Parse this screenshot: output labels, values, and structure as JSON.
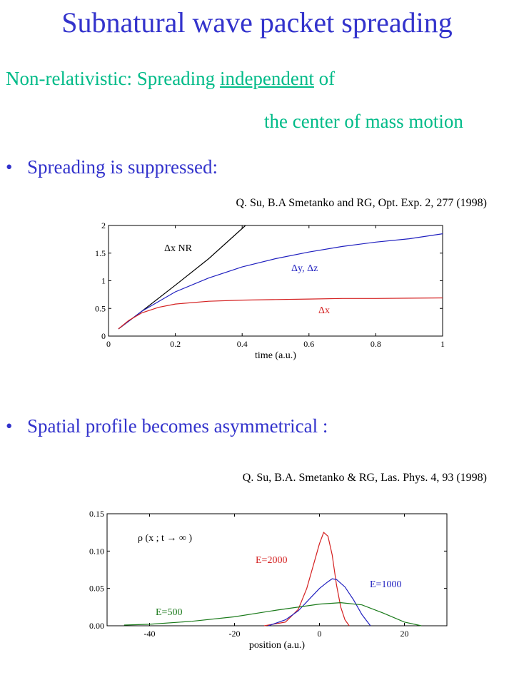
{
  "slide": {
    "title": "Subnatural wave packet spreading",
    "nr_line1_prefix": "Non-relativistic: Spreading ",
    "nr_line1_underlined": "independent",
    "nr_line1_suffix": " of",
    "nr_line2": "the center of mass motion",
    "bullet1": "Spreading is suppressed:",
    "ref1": "Q. Su, B.A Smetanko and RG, Opt. Exp. 2, 277 (1998)",
    "bullet2": "Spatial profile becomes asymmetrical :",
    "ref2": "Q. Su,  B.A. Smetanko & RG, Las. Phys. 4, 93 (1998)",
    "bullet_glyph": "•"
  },
  "chart_data": [
    {
      "type": "line",
      "xlabel": "time (a.u.)",
      "ylabel": "",
      "xlim": [
        0,
        1
      ],
      "ylim": [
        0,
        2
      ],
      "xticks": [
        "0",
        "0.2",
        "0.4",
        "0.6",
        "0.8",
        "1"
      ],
      "yticks": [
        "0",
        "0.5",
        "1",
        "1.5",
        "2"
      ],
      "series": [
        {
          "name": "Δx NR",
          "color": "#000000",
          "x": [
            0.03,
            0.1,
            0.2,
            0.3,
            0.41
          ],
          "y": [
            0.13,
            0.45,
            0.92,
            1.4,
            2.0
          ]
        },
        {
          "name": "Δy,  Δz",
          "color": "#1f1fbf",
          "x": [
            0.03,
            0.1,
            0.2,
            0.3,
            0.4,
            0.5,
            0.6,
            0.7,
            0.8,
            0.9,
            1.0
          ],
          "y": [
            0.13,
            0.45,
            0.8,
            1.05,
            1.25,
            1.4,
            1.52,
            1.62,
            1.7,
            1.76,
            1.85
          ]
        },
        {
          "name": "Δx",
          "color": "#d42020",
          "x": [
            0.03,
            0.06,
            0.1,
            0.15,
            0.2,
            0.3,
            0.4,
            0.5,
            0.6,
            0.7,
            0.8,
            0.9,
            1.0
          ],
          "y": [
            0.13,
            0.28,
            0.42,
            0.52,
            0.58,
            0.63,
            0.65,
            0.66,
            0.67,
            0.68,
            0.68,
            0.685,
            0.69
          ]
        }
      ]
    },
    {
      "type": "line",
      "title": "ρ (x ; t → ∞ )",
      "xlabel": "position (a.u.)",
      "ylabel": "",
      "xlim": [
        -50,
        30
      ],
      "ylim": [
        0,
        0.15
      ],
      "xticks": [
        "-40",
        "-20",
        "0",
        "20"
      ],
      "yticks": [
        "0.00",
        "0.05",
        "0.10",
        "0.15"
      ],
      "series": [
        {
          "name": "E=2000",
          "color": "#d42020",
          "x": [
            -13,
            -8,
            -5,
            -3,
            -1,
            0,
            1,
            2,
            3,
            4,
            5,
            6,
            7
          ],
          "y": [
            0,
            0.005,
            0.022,
            0.05,
            0.09,
            0.11,
            0.125,
            0.12,
            0.095,
            0.055,
            0.025,
            0.008,
            0
          ]
        },
        {
          "name": "E=1000",
          "color": "#1f1fbf",
          "x": [
            -12,
            -8,
            -5,
            -2,
            0,
            2,
            3,
            4,
            6,
            8,
            10,
            12
          ],
          "y": [
            0,
            0.008,
            0.02,
            0.038,
            0.05,
            0.059,
            0.063,
            0.062,
            0.052,
            0.035,
            0.015,
            0
          ]
        },
        {
          "name": "E=500",
          "color": "#1a7a1a",
          "x": [
            -46,
            -40,
            -30,
            -20,
            -10,
            0,
            5,
            10,
            15,
            20,
            24
          ],
          "y": [
            0.001,
            0.002,
            0.006,
            0.012,
            0.021,
            0.029,
            0.031,
            0.028,
            0.017,
            0.005,
            0.0
          ]
        }
      ]
    }
  ]
}
